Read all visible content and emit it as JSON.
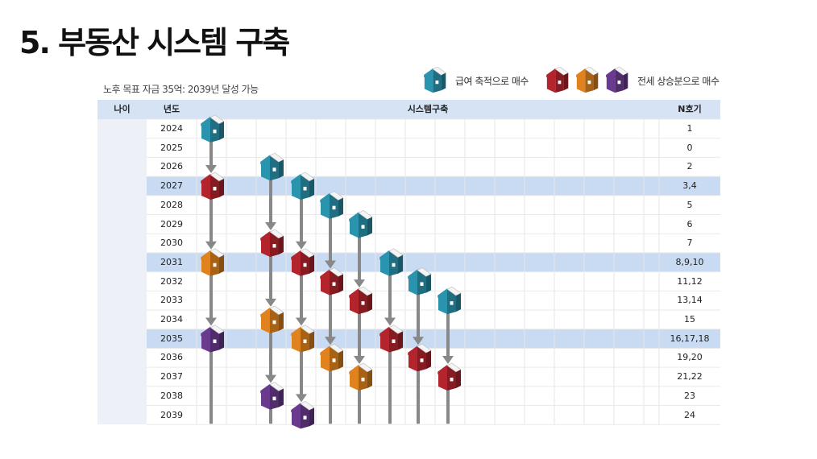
{
  "title": "5. 부동산 시스템 구축",
  "subtitle": "노후 목표 자금 35억: 2039년 달성 가능",
  "legend": {
    "salary_label": "급여 축적으로 매수",
    "lease_label": "전세 상승분으로 매수"
  },
  "columns": {
    "age": "나이",
    "year": "년도",
    "system": "시스템구축",
    "n_house": "N호기"
  },
  "colors": {
    "teal": "#2a93ad",
    "red": "#b3242d",
    "orange": "#e0821d",
    "purple": "#6a3a8f",
    "arrow": "#888888",
    "header_bg": "#d6e3f5",
    "highlight_bg": "#c9dbf2"
  },
  "rows": [
    {
      "year": "2024",
      "n": "1",
      "highlight": false
    },
    {
      "year": "2025",
      "n": "0",
      "highlight": false
    },
    {
      "year": "2026",
      "n": "2",
      "highlight": false
    },
    {
      "year": "2027",
      "n": "3,4",
      "highlight": true
    },
    {
      "year": "2028",
      "n": "5",
      "highlight": false
    },
    {
      "year": "2029",
      "n": "6",
      "highlight": false
    },
    {
      "year": "2030",
      "n": "7",
      "highlight": false
    },
    {
      "year": "2031",
      "n": "8,9,10",
      "highlight": true
    },
    {
      "year": "2032",
      "n": "11,12",
      "highlight": false
    },
    {
      "year": "2033",
      "n": "13,14",
      "highlight": false
    },
    {
      "year": "2034",
      "n": "15",
      "highlight": false
    },
    {
      "year": "2035",
      "n": "16,17,18",
      "highlight": true
    },
    {
      "year": "2036",
      "n": "19,20",
      "highlight": false
    },
    {
      "year": "2037",
      "n": "21,22",
      "highlight": false
    },
    {
      "year": "2038",
      "n": "23",
      "highlight": false
    },
    {
      "year": "2039",
      "n": "24",
      "highlight": false
    }
  ],
  "lanes": [
    {
      "houses": [
        {
          "year": "2024",
          "color": "teal"
        },
        {
          "year": "2027",
          "color": "red"
        },
        {
          "year": "2031",
          "color": "orange"
        },
        {
          "year": "2035",
          "color": "purple"
        }
      ]
    },
    {
      "houses": [
        {
          "year": "2026",
          "color": "teal"
        },
        {
          "year": "2030",
          "color": "red"
        },
        {
          "year": "2034",
          "color": "orange"
        },
        {
          "year": "2038",
          "color": "purple"
        }
      ]
    },
    {
      "houses": [
        {
          "year": "2027",
          "color": "teal"
        },
        {
          "year": "2031",
          "color": "red"
        },
        {
          "year": "2035",
          "color": "orange"
        },
        {
          "year": "2039",
          "color": "purple"
        }
      ]
    },
    {
      "houses": [
        {
          "year": "2028",
          "color": "teal"
        },
        {
          "year": "2032",
          "color": "red"
        },
        {
          "year": "2036",
          "color": "orange"
        }
      ]
    },
    {
      "houses": [
        {
          "year": "2029",
          "color": "teal"
        },
        {
          "year": "2033",
          "color": "red"
        },
        {
          "year": "2037",
          "color": "orange"
        }
      ]
    },
    {
      "houses": [
        {
          "year": "2031",
          "color": "teal"
        },
        {
          "year": "2035",
          "color": "red"
        }
      ]
    },
    {
      "houses": [
        {
          "year": "2032",
          "color": "teal"
        },
        {
          "year": "2036",
          "color": "red"
        }
      ]
    },
    {
      "houses": [
        {
          "year": "2033",
          "color": "teal"
        },
        {
          "year": "2037",
          "color": "red"
        }
      ]
    }
  ]
}
